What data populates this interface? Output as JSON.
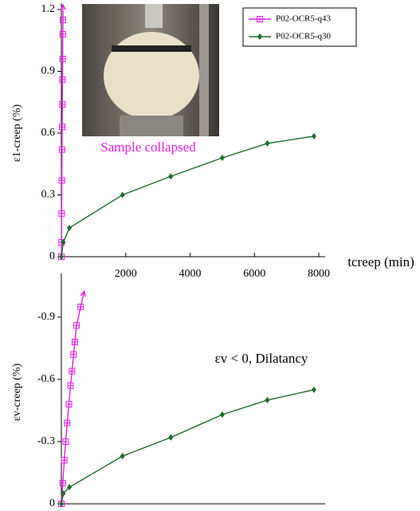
{
  "chart_data": [
    {
      "type": "line",
      "ylabel": "ε1-creep (%)",
      "xlabel": "tcreep (min)",
      "annotation": "Sample collapsed",
      "xlim": [
        0,
        8000
      ],
      "xticks": [
        2000,
        4000,
        6000,
        8000
      ],
      "ylim": [
        0,
        1.2
      ],
      "yticks": [
        0,
        0.3,
        0.6,
        0.9,
        1.2
      ],
      "legend": "upper right",
      "series": [
        {
          "name": "P02-OCR5-q43",
          "color": "#e020e0",
          "marker": "square-plus",
          "x": [
            0,
            5,
            10,
            15,
            20,
            25,
            30,
            35,
            40,
            45,
            50
          ],
          "values": [
            0,
            0.07,
            0.21,
            0.37,
            0.52,
            0.63,
            0.74,
            0.86,
            0.96,
            1.08,
            1.15
          ]
        },
        {
          "name": "P02-OCR5-q30",
          "color": "#1e6b2e",
          "marker": "diamond",
          "x": [
            0,
            60,
            250,
            1900,
            3400,
            5000,
            6400,
            7850
          ],
          "values": [
            0,
            0.07,
            0.14,
            0.3,
            0.39,
            0.48,
            0.55,
            0.585
          ]
        }
      ]
    },
    {
      "type": "line",
      "ylabel": "εv-creep (%)",
      "annotation": "εv < 0, Dilatancy",
      "xlim": [
        0,
        8000
      ],
      "ylim": [
        0,
        -1.08
      ],
      "yticks": [
        0,
        -0.3,
        -0.6,
        -0.9
      ],
      "series": [
        {
          "name": "P02-OCR5-q43",
          "color": "#e020e0",
          "marker": "square-plus",
          "x": [
            0,
            45,
            90,
            135,
            180,
            235,
            285,
            330,
            380,
            420,
            470,
            600
          ],
          "values": [
            0,
            -0.1,
            -0.21,
            -0.3,
            -0.39,
            -0.48,
            -0.57,
            -0.64,
            -0.72,
            -0.78,
            -0.86,
            -0.95
          ]
        },
        {
          "name": "P02-OCR5-q30",
          "color": "#1e6b2e",
          "marker": "diamond",
          "x": [
            0,
            60,
            250,
            1900,
            3400,
            5000,
            6400,
            7850
          ],
          "values": [
            0,
            -0.05,
            -0.08,
            -0.23,
            -0.32,
            -0.43,
            -0.5,
            -0.55
          ]
        }
      ]
    }
  ]
}
